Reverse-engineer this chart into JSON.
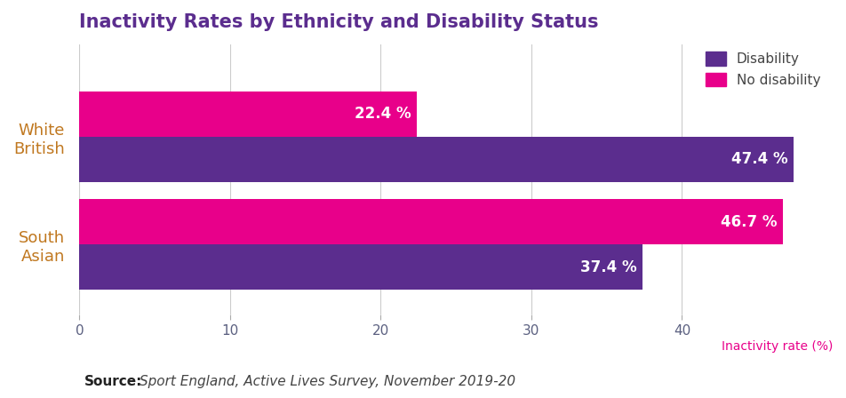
{
  "title": "Inactivity Rates by Ethnicity and Disability Status",
  "title_color": "#5b2d8e",
  "categories": [
    "White\nBritish",
    "South\nAsian"
  ],
  "disability_values": [
    47.4,
    37.4
  ],
  "no_disability_values": [
    22.4,
    46.7
  ],
  "disability_color": "#5b2d8e",
  "no_disability_color": "#e8008a",
  "bar_label_color": "#ffffff",
  "xlabel": "Inactivity rate (%)",
  "xlabel_color": "#e8008a",
  "xlim": [
    0,
    50
  ],
  "xticks": [
    0,
    10,
    20,
    30,
    40
  ],
  "legend_labels": [
    "Disability",
    "No disability"
  ],
  "source_bold": "Source: ",
  "source_italic": " Sport England, Active Lives Survey, November 2019-20",
  "bar_height": 0.42,
  "label_fontsize": 12,
  "title_fontsize": 15,
  "tick_fontsize": 11,
  "xlabel_fontsize": 10,
  "source_fontsize": 11,
  "legend_fontsize": 11,
  "ytick_color": "#c07820",
  "xtick_color": "#5b6080"
}
